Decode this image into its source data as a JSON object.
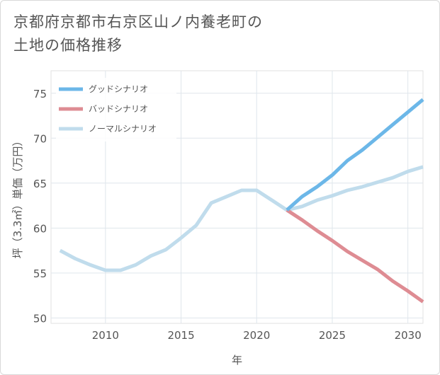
{
  "title": {
    "line1": "京都府京都市右京区山ノ内養老町の",
    "line2": "土地の価格推移"
  },
  "chart_data": {
    "type": "line",
    "xlabel": "年",
    "ylabel": "坪（3.3㎡）単価（万円）",
    "xlim": [
      2006.4,
      2031
    ],
    "ylim": [
      49.4,
      77.5
    ],
    "xticks": [
      2010,
      2015,
      2020,
      2025,
      2030
    ],
    "yticks": [
      50,
      55,
      60,
      65,
      70,
      75
    ],
    "grid": true,
    "legend_position": "top-left",
    "series": [
      {
        "name": "グッドシナリオ",
        "color": "#6cb7e8",
        "x": [
          2022,
          2023,
          2024,
          2025,
          2026,
          2027,
          2028,
          2029,
          2030,
          2031
        ],
        "y": [
          62.0,
          63.5,
          64.6,
          65.9,
          67.5,
          68.7,
          70.1,
          71.5,
          72.9,
          74.3
        ]
      },
      {
        "name": "バッドシナリオ",
        "color": "#de8c93",
        "x": [
          2022,
          2023,
          2024,
          2025,
          2026,
          2027,
          2028,
          2029,
          2030,
          2031
        ],
        "y": [
          62.0,
          60.9,
          59.7,
          58.6,
          57.4,
          56.4,
          55.4,
          54.1,
          53.0,
          51.8
        ]
      },
      {
        "name": "ノーマルシナリオ",
        "color": "#c0dcec",
        "x": [
          2007,
          2008,
          2009,
          2010,
          2011,
          2012,
          2013,
          2014,
          2015,
          2016,
          2017,
          2018,
          2019,
          2020,
          2021,
          2022,
          2023,
          2024,
          2025,
          2026,
          2027,
          2028,
          2029,
          2030,
          2031
        ],
        "y": [
          57.5,
          56.6,
          55.9,
          55.3,
          55.3,
          55.9,
          56.9,
          57.6,
          58.9,
          60.3,
          62.8,
          63.5,
          64.2,
          64.2,
          63.1,
          62.0,
          62.4,
          63.1,
          63.6,
          64.2,
          64.6,
          65.1,
          65.6,
          66.3,
          66.8
        ]
      }
    ]
  }
}
